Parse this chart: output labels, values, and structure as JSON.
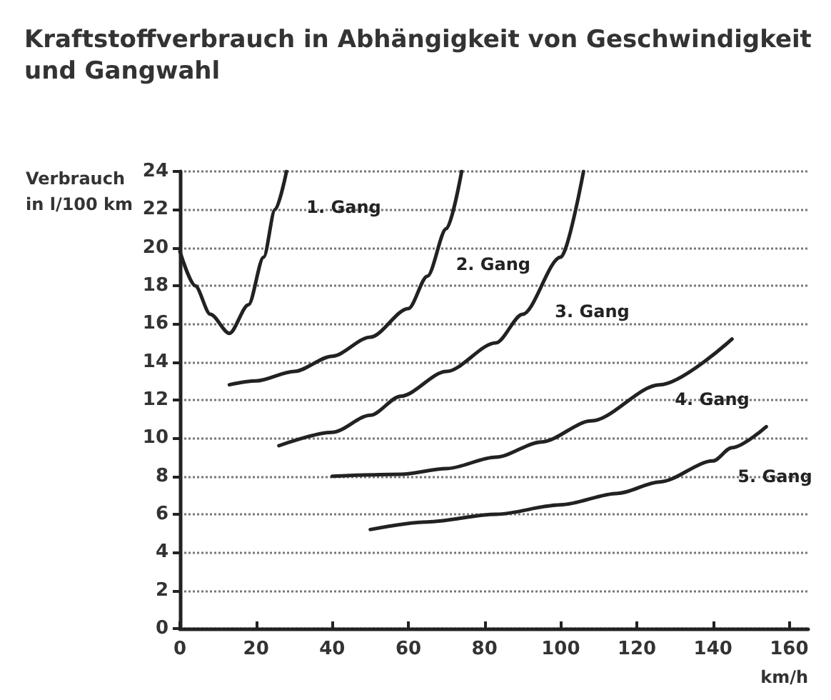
{
  "chart_data": {
    "type": "line",
    "title": "Kraftstoffverbrauch in Abhängigkeit von Geschwindigkeit\nund Gangwahl",
    "xlabel": "km/h",
    "ylabel": "Verbrauch\nin l/100 km",
    "xlim": [
      0,
      165
    ],
    "xticks": [
      0,
      20,
      40,
      60,
      80,
      100,
      120,
      140,
      160
    ],
    "ylim": [
      0,
      24
    ],
    "yticks": [
      0,
      2,
      4,
      6,
      8,
      10,
      12,
      14,
      16,
      18,
      20,
      22,
      24
    ],
    "grid": "y",
    "legend": false,
    "marker": "none",
    "line_style": "solid",
    "series": [
      {
        "name": "1. Gang",
        "color": "#222222",
        "x": [
          0,
          4,
          8,
          13,
          18,
          22,
          25,
          28
        ],
        "values": [
          19.8,
          18,
          16.5,
          15.5,
          17,
          19.5,
          22,
          24
        ]
      },
      {
        "name": "2. Gang",
        "color": "#222222",
        "x": [
          13,
          20,
          30,
          40,
          50,
          60,
          65,
          70,
          74
        ],
        "values": [
          12.8,
          13,
          13.5,
          14.3,
          15.3,
          16.8,
          18.5,
          21,
          24
        ]
      },
      {
        "name": "3. Gang",
        "color": "#222222",
        "x": [
          26,
          40,
          50,
          58,
          70,
          83,
          90,
          100,
          106
        ],
        "values": [
          9.6,
          10.3,
          11.2,
          12.2,
          13.5,
          15,
          16.5,
          19.5,
          24
        ]
      },
      {
        "name": "4. Gang",
        "color": "#222222",
        "x": [
          40,
          58,
          70,
          83,
          95,
          108,
          126,
          145
        ],
        "values": [
          8,
          8.1,
          8.4,
          9,
          9.8,
          10.9,
          12.8,
          15.2
        ]
      },
      {
        "name": "5. Gang",
        "color": "#222222",
        "x": [
          50,
          65,
          83,
          100,
          115,
          126,
          140,
          145,
          154
        ],
        "values": [
          5.2,
          5.6,
          6,
          6.5,
          7.1,
          7.7,
          8.8,
          9.5,
          10.6
        ]
      }
    ]
  }
}
